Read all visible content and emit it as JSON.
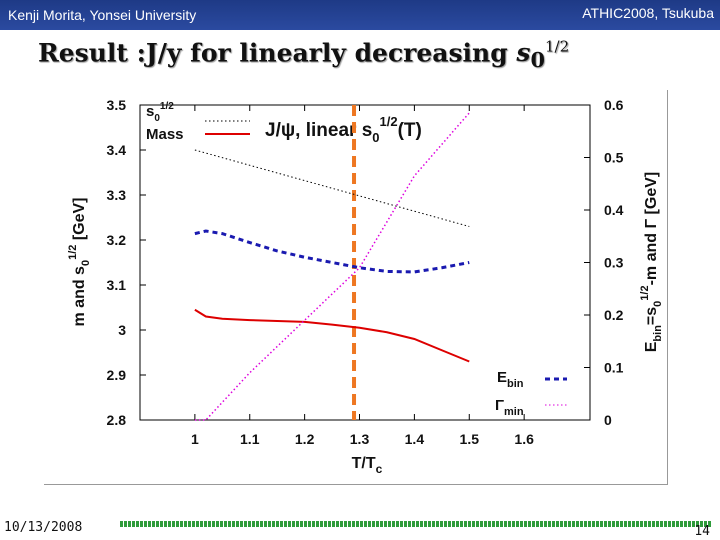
{
  "header": {
    "left": "Kenji Morita, Yonsei University",
    "right": "ATHIC2008, Tsukuba"
  },
  "slide": {
    "title_main": "Result :J/y for linearly decreasing",
    "title_sym": "s",
    "title_sub": "0",
    "title_sup": "1/2"
  },
  "footer": {
    "date": "10/13/2008",
    "page": "14"
  },
  "chart_data": {
    "type": "line",
    "title": "J/ψ, linear s0^1/2(T)",
    "xlabel": "T/Tc",
    "ylabel_left": "m and s0^1/2 [GeV]",
    "ylabel_right": "Ebin=s0^1/2-m and Γ [GeV]",
    "xlim": [
      0.9,
      1.72
    ],
    "ylim_left": [
      2.8,
      3.5
    ],
    "ylim_right": [
      0,
      0.6
    ],
    "x_ticks": [
      "1",
      "1.1",
      "1.2",
      "1.3",
      "1.4",
      "1.5",
      "1.6"
    ],
    "y_ticks_left": [
      "2.8",
      "2.9",
      "3",
      "3.1",
      "3.2",
      "3.3",
      "3.4",
      "3.5"
    ],
    "y_ticks_right": [
      "0",
      "0.1",
      "0.2",
      "0.3",
      "0.4",
      "0.5",
      "0.6"
    ],
    "vertical_marker_x": 1.29,
    "legend_placement": "top-left and bottom-right",
    "series": [
      {
        "name": "s0^1/2",
        "axis": "left",
        "color": "#000000",
        "style": "dotted",
        "x": [
          1.0,
          1.5
        ],
        "y": [
          3.4,
          3.23
        ]
      },
      {
        "name": "Mass",
        "axis": "left",
        "color": "#dd0000",
        "style": "solid",
        "x": [
          1.0,
          1.02,
          1.05,
          1.1,
          1.15,
          1.2,
          1.25,
          1.3,
          1.35,
          1.4,
          1.45,
          1.5
        ],
        "y": [
          3.045,
          3.03,
          3.025,
          3.022,
          3.02,
          3.018,
          3.012,
          3.005,
          2.995,
          2.98,
          2.955,
          2.93
        ]
      },
      {
        "name": "Ebin",
        "axis": "right",
        "color": "#1a1ab0",
        "style": "dashed",
        "x": [
          1.0,
          1.02,
          1.05,
          1.1,
          1.15,
          1.2,
          1.25,
          1.3,
          1.35,
          1.4,
          1.45,
          1.5
        ],
        "y": [
          0.355,
          0.36,
          0.355,
          0.338,
          0.322,
          0.31,
          0.3,
          0.29,
          0.283,
          0.282,
          0.29,
          0.3
        ]
      },
      {
        "name": "Γmin",
        "axis": "right",
        "color": "#dd00dd",
        "style": "dotted",
        "x": [
          1.0,
          1.02,
          1.1,
          1.2,
          1.3,
          1.4,
          1.5
        ],
        "y": [
          0.0,
          0.0,
          0.09,
          0.19,
          0.29,
          0.465,
          0.585
        ]
      }
    ],
    "legend_entries": [
      {
        "label": "s0^1/2",
        "series": 0
      },
      {
        "label": "Mass",
        "series": 1
      },
      {
        "label": "Ebin",
        "series": 2
      },
      {
        "label": "Γmin",
        "series": 3
      }
    ],
    "colors": {
      "marker": "#ee7722",
      "header_bg": "#243f93"
    }
  }
}
